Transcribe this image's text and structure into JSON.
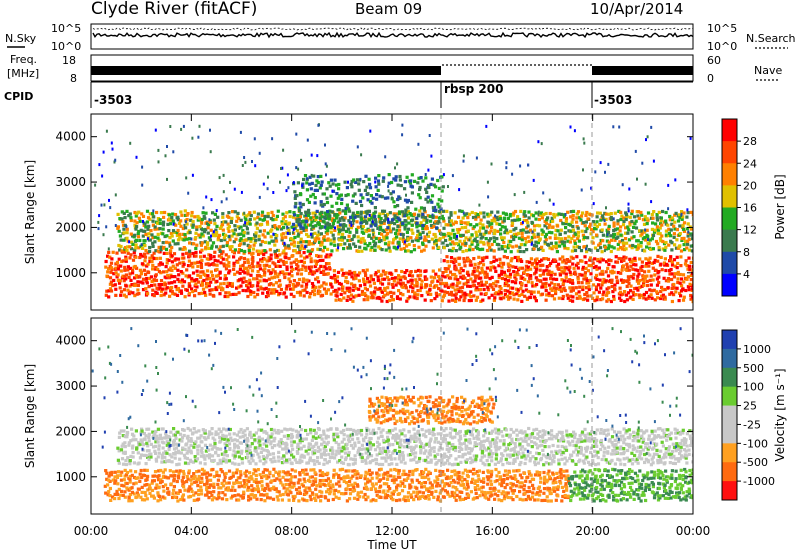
{
  "header": {
    "station": "Clyde River (fitACF)",
    "beam": "Beam 09",
    "date": "10/Apr/2014"
  },
  "strip": {
    "nsky_label": "N.Sky",
    "nsky_top_tick": "10^5",
    "nsky_bottom_tick": "10^0",
    "nsearch_label": "N.Search",
    "nsearch_top_tick": "10^5",
    "nsearch_bottom_tick": "10^0",
    "freq_label_line1": "Freq.",
    "freq_label_line2": "[MHz]",
    "freq_top_tick": "18",
    "freq_bottom_tick": "8",
    "nave_label": "Nave",
    "nave_top_tick": "60",
    "nave_bottom_tick": "0",
    "cpid_label": "CPID",
    "cpid_segments": [
      {
        "label": "-3503",
        "start_hour": 0,
        "end_hour": 14
      },
      {
        "label": "rbsp 200",
        "start_hour": 14,
        "end_hour": 20
      },
      {
        "label": "-3503",
        "start_hour": 20,
        "end_hour": 24
      }
    ]
  },
  "colors": {
    "power_scale": [
      "#0000ff",
      "#1f4aa8",
      "#3a7a4e",
      "#22aa22",
      "#e0c000",
      "#ff8000",
      "#ff4500",
      "#ff0000"
    ],
    "velocity_scale": [
      "#2040b0",
      "#2f6aa0",
      "#3a8a50",
      "#6acc30",
      "#c8c8c8",
      "#c8c8c8",
      "#ffa020",
      "#ff6a10",
      "#ff1010"
    ]
  },
  "chart_data": [
    {
      "type": "heatmap",
      "name": "power",
      "xlabel": "",
      "ylabel": "Slant Range [km]",
      "xlim": [
        0,
        24
      ],
      "ylim": [
        180,
        4500
      ],
      "y_ticks": [
        "1000",
        "2000",
        "3000",
        "4000"
      ],
      "colorbar_label": "Power [dB]",
      "colorbar_ticks": [
        "4",
        "8",
        "12",
        "16",
        "20",
        "24",
        "28"
      ],
      "bands": [
        {
          "from_hour": 0.5,
          "to_hour": 9.5,
          "range_low": 500,
          "range_high": 1500,
          "level": "strong"
        },
        {
          "from_hour": 9.5,
          "to_hour": 14,
          "range_low": 400,
          "range_high": 1100,
          "level": "strong"
        },
        {
          "from_hour": 14,
          "to_hour": 24,
          "range_low": 400,
          "range_high": 1400,
          "level": "strong"
        },
        {
          "from_hour": 1,
          "to_hour": 14,
          "range_low": 1500,
          "range_high": 2400,
          "level": "medium"
        },
        {
          "from_hour": 14,
          "to_hour": 24,
          "range_low": 1500,
          "range_high": 2400,
          "level": "medium"
        },
        {
          "from_hour": 8,
          "to_hour": 14,
          "range_low": 2000,
          "range_high": 3200,
          "level": "weak"
        }
      ]
    },
    {
      "type": "heatmap",
      "name": "velocity",
      "xlabel": "Time UT",
      "ylabel": "Slant Range [km]",
      "xlim": [
        0,
        24
      ],
      "ylim": [
        180,
        4500
      ],
      "x_ticks": [
        "00:00",
        "04:00",
        "08:00",
        "12:00",
        "16:00",
        "20:00",
        "00:00"
      ],
      "y_ticks": [
        "1000",
        "2000",
        "3000",
        "4000"
      ],
      "colorbar_label": "Velocity [m s⁻¹]",
      "colorbar_ticks": [
        "1000",
        "500",
        "100",
        "25",
        "-25",
        "-100",
        "-500",
        "-1000"
      ],
      "bands": [
        {
          "from_hour": 0.5,
          "to_hour": 19,
          "range_low": 500,
          "range_high": 1200,
          "level": "orange"
        },
        {
          "from_hour": 19,
          "to_hour": 24,
          "range_low": 500,
          "range_high": 1200,
          "level": "green"
        },
        {
          "from_hour": 1,
          "to_hour": 24,
          "range_low": 1300,
          "range_high": 2100,
          "level": "gray"
        },
        {
          "from_hour": 11,
          "to_hour": 16,
          "range_low": 2200,
          "range_high": 2800,
          "level": "orange"
        }
      ]
    }
  ]
}
